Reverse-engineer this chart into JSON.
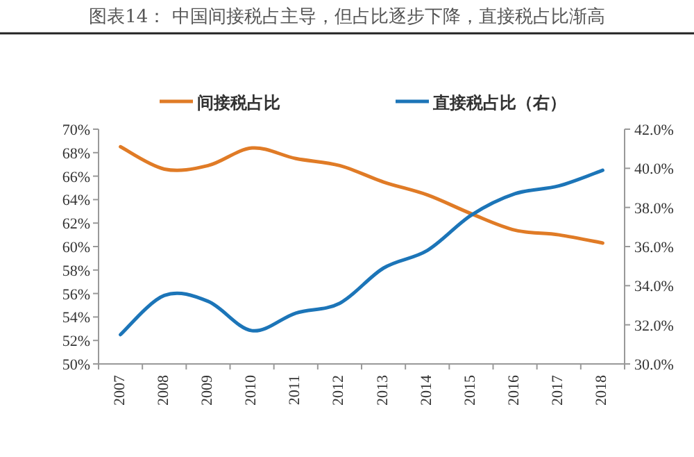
{
  "chart_data": {
    "type": "line",
    "title": "图表14：    中国间接税占主导，但占比逐步下降，直接税占比渐高",
    "categories": [
      "2007",
      "2008",
      "2009",
      "2010",
      "2011",
      "2012",
      "2013",
      "2014",
      "2015",
      "2016",
      "2017",
      "2018"
    ],
    "series": [
      {
        "name": "间接税占比",
        "color": "#e07b26",
        "values": [
          68.5,
          66.6,
          66.9,
          68.4,
          67.5,
          66.9,
          65.5,
          64.4,
          62.8,
          61.4,
          61.0,
          60.3
        ]
      },
      {
        "name": "直接税占比（右）",
        "color": "#1c75b8",
        "axis": "y2",
        "values": [
          31.5,
          33.5,
          33.2,
          31.7,
          32.6,
          33.1,
          34.9,
          35.8,
          37.6,
          38.7,
          39.1,
          39.9
        ]
      }
    ],
    "ylim": [
      50,
      70
    ],
    "yticks": [
      {
        "value": 50,
        "label": "50%"
      },
      {
        "value": 52,
        "label": "52%"
      },
      {
        "value": 54,
        "label": "54%"
      },
      {
        "value": 56,
        "label": "56%"
      },
      {
        "value": 58,
        "label": "58%"
      },
      {
        "value": 60,
        "label": "60%"
      },
      {
        "value": 62,
        "label": "62%"
      },
      {
        "value": 64,
        "label": "64%"
      },
      {
        "value": 66,
        "label": "66%"
      },
      {
        "value": 68,
        "label": "68%"
      },
      {
        "value": 70,
        "label": "70%"
      }
    ],
    "y2lim": [
      30,
      42
    ],
    "y2ticks": [
      {
        "value": 30,
        "label": "30.0%"
      },
      {
        "value": 32,
        "label": "32.0%"
      },
      {
        "value": 34,
        "label": "34.0%"
      },
      {
        "value": 36,
        "label": "36.0%"
      },
      {
        "value": 38,
        "label": "38.0%"
      },
      {
        "value": 40,
        "label": "40.0%"
      },
      {
        "value": 42,
        "label": "42.0%"
      }
    ],
    "legend": "top",
    "marker": "none",
    "line_style": "solid"
  }
}
